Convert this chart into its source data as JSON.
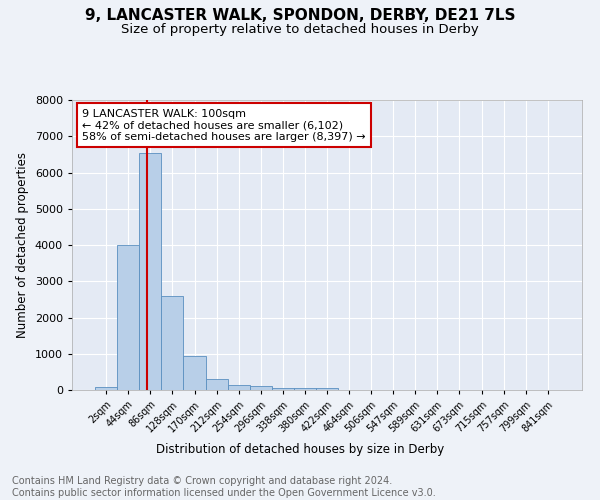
{
  "title": "9, LANCASTER WALK, SPONDON, DERBY, DE21 7LS",
  "subtitle": "Size of property relative to detached houses in Derby",
  "xlabel": "Distribution of detached houses by size in Derby",
  "ylabel": "Number of detached properties",
  "bin_labels": [
    "2sqm",
    "44sqm",
    "86sqm",
    "128sqm",
    "170sqm",
    "212sqm",
    "254sqm",
    "296sqm",
    "338sqm",
    "380sqm",
    "422sqm",
    "464sqm",
    "506sqm",
    "547sqm",
    "589sqm",
    "631sqm",
    "673sqm",
    "715sqm",
    "757sqm",
    "799sqm",
    "841sqm"
  ],
  "bar_values": [
    80,
    4000,
    6550,
    2600,
    950,
    310,
    130,
    110,
    60,
    60,
    50,
    0,
    0,
    0,
    0,
    0,
    0,
    0,
    0,
    0,
    0
  ],
  "bar_color": "#b8cfe8",
  "bar_edge_color": "#5a8fc0",
  "vline_color": "#cc0000",
  "annotation_text": "9 LANCASTER WALK: 100sqm\n← 42% of detached houses are smaller (6,102)\n58% of semi-detached houses are larger (8,397) →",
  "annotation_box_color": "#ffffff",
  "annotation_box_edge_color": "#cc0000",
  "ylim": [
    0,
    8000
  ],
  "yticks": [
    0,
    1000,
    2000,
    3000,
    4000,
    5000,
    6000,
    7000,
    8000
  ],
  "footnote": "Contains HM Land Registry data © Crown copyright and database right 2024.\nContains public sector information licensed under the Open Government Licence v3.0.",
  "background_color": "#eef2f8",
  "plot_bg_color": "#e4eaf4",
  "grid_color": "#ffffff",
  "title_fontsize": 11,
  "subtitle_fontsize": 9.5,
  "footnote_fontsize": 7,
  "annotation_fontsize": 8
}
